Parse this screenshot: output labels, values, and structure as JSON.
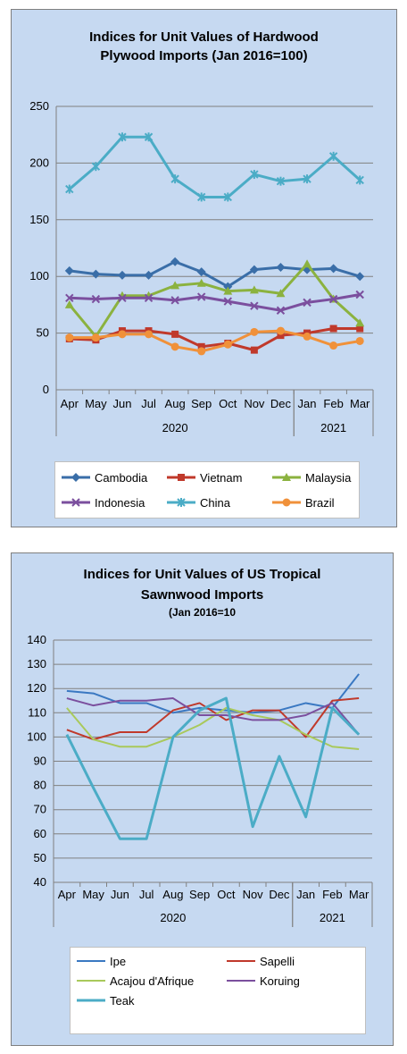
{
  "chart_data": [
    {
      "type": "line",
      "title_line1": "Indices for Unit Values of Hardwood",
      "title_line2": "Plywood Imports (Jan 2016=100)",
      "categories": [
        "Apr",
        "May",
        "Jun",
        "Jul",
        "Aug",
        "Sep",
        "Oct",
        "Nov",
        "Dec",
        "Jan",
        "Feb",
        "Mar"
      ],
      "year_groups": [
        {
          "label": "2020",
          "from": 0,
          "to": 8
        },
        {
          "label": "2021",
          "from": 9,
          "to": 11
        }
      ],
      "ylim": [
        0,
        250
      ],
      "yticks": [
        0,
        50,
        100,
        150,
        200,
        250
      ],
      "grid": true,
      "legend": "bottom",
      "series": [
        {
          "name": "Cambodia",
          "color": "#3a6ea8",
          "marker": "diamond",
          "values": [
            105,
            102,
            101,
            101,
            113,
            104,
            91,
            106,
            108,
            106,
            107,
            100
          ]
        },
        {
          "name": "Vietnam",
          "color": "#c0392b",
          "marker": "square",
          "values": [
            45,
            44,
            52,
            52,
            49,
            38,
            41,
            35,
            48,
            50,
            54,
            54
          ]
        },
        {
          "name": "Malaysia",
          "color": "#8bb23f",
          "marker": "triangle",
          "values": [
            75,
            47,
            83,
            83,
            92,
            94,
            87,
            88,
            85,
            111,
            80,
            59
          ]
        },
        {
          "name": "Indonesia",
          "color": "#7b4f9e",
          "marker": "x",
          "values": [
            81,
            80,
            81,
            81,
            79,
            82,
            78,
            74,
            70,
            77,
            80,
            84
          ]
        },
        {
          "name": "China",
          "color": "#4bacc6",
          "marker": "star",
          "values": [
            177,
            197,
            223,
            223,
            186,
            170,
            170,
            190,
            184,
            186,
            206,
            185
          ]
        },
        {
          "name": "Brazil",
          "color": "#f0913a",
          "marker": "circle",
          "values": [
            46,
            46,
            49,
            49,
            38,
            34,
            40,
            51,
            52,
            47,
            39,
            43
          ]
        }
      ]
    },
    {
      "type": "line",
      "title_line1": "Indices for Unit Values of US Tropical",
      "title_line2": "Sawnwood Imports",
      "subtitle": "(Jan 2016=10",
      "categories": [
        "Apr",
        "May",
        "Jun",
        "Jul",
        "Aug",
        "Sep",
        "Oct",
        "Nov",
        "Dec",
        "Jan",
        "Feb",
        "Mar"
      ],
      "year_groups": [
        {
          "label": "2020",
          "from": 0,
          "to": 8
        },
        {
          "label": "2021",
          "from": 9,
          "to": 11
        }
      ],
      "ylim": [
        40,
        140
      ],
      "yticks": [
        40,
        50,
        60,
        70,
        80,
        90,
        100,
        110,
        120,
        130,
        140
      ],
      "grid": true,
      "legend": "bottom",
      "series": [
        {
          "name": "Ipe",
          "color": "#3a78c2",
          "width": 2,
          "values": [
            119,
            118,
            114,
            114,
            110,
            112,
            111,
            110,
            111,
            114,
            112,
            126
          ]
        },
        {
          "name": "Sapelli",
          "color": "#c0392b",
          "width": 2,
          "values": [
            103,
            99,
            102,
            102,
            111,
            114,
            107,
            111,
            111,
            100,
            115,
            116
          ]
        },
        {
          "name": "Acajou d'Afrique",
          "color": "#a9c95b",
          "width": 2,
          "values": [
            112,
            99,
            96,
            96,
            100,
            105,
            112,
            109,
            107,
            101,
            96,
            95
          ]
        },
        {
          "name": "Koruing",
          "color": "#7b4f9e",
          "width": 2,
          "values": [
            116,
            113,
            115,
            115,
            116,
            109,
            109,
            107,
            107,
            109,
            114,
            101
          ]
        },
        {
          "name": "Teak",
          "color": "#4bacc6",
          "width": 3,
          "values": [
            101,
            79,
            58,
            58,
            100,
            111,
            116,
            63,
            92,
            67,
            112,
            101
          ]
        }
      ]
    }
  ]
}
